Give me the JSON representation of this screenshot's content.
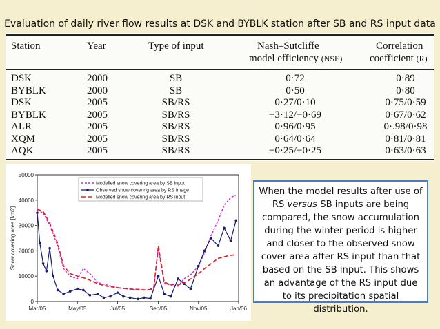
{
  "title": "Evaluation of daily river flow results at DSK and BYBLK station after SB and RS input data",
  "table": {
    "headers": {
      "station": "Station",
      "year": "Year",
      "type": "Type of input",
      "nse_line1": "Nash–Sutcliffe",
      "nse_line2": "model efficiency",
      "nse_abbr": "(NSE)",
      "corr_line1": "Correlation",
      "corr_line2": "coefficient",
      "corr_abbr": "(R)"
    },
    "rows": [
      {
        "station": "DSK",
        "year": "2000",
        "type": "SB",
        "nse": "0·72",
        "r": "0·89"
      },
      {
        "station": "BYBLK",
        "year": "2000",
        "type": "SB",
        "nse": "0·50",
        "r": "0·80"
      },
      {
        "station": "DSK",
        "year": "2005",
        "type": "SB/RS",
        "nse": "0·27/0·10",
        "r": "0·75/0·59"
      },
      {
        "station": "BYBLK",
        "year": "2005",
        "type": "SB/RS",
        "nse": "−3·12/−0·69",
        "r": "0·67/0·62"
      },
      {
        "station": "ALR",
        "year": "2005",
        "type": "SB/RS",
        "nse": "0·96/0·95",
        "r": "0·.98/0·98"
      },
      {
        "station": "XQM",
        "year": "2005",
        "type": "SB/RS",
        "nse": "0·64/0·64",
        "r": "0·81/0·81"
      },
      {
        "station": "AQK",
        "year": "2005",
        "type": "SB/RS",
        "nse": "−0·25/−0·25",
        "r": "0·63/0·63"
      }
    ]
  },
  "chart_data": {
    "type": "line",
    "ylabel": "Snow covering area [km2]",
    "xlabel": "",
    "ylim": [
      0,
      50000
    ],
    "yticks": [
      "0",
      "10000",
      "20000",
      "30000",
      "40000",
      "50000"
    ],
    "xticks": [
      "Mar/05",
      "May/05",
      "Jul/05",
      "Sep/05",
      "Nov/05",
      "Jan/06"
    ],
    "legend_position": "top-right",
    "series": [
      {
        "name": "Modelled snow covering area by SB input",
        "color": "#d020d0",
        "x": [
          "2005-03-01",
          "2005-03-10",
          "2005-03-20",
          "2005-04-01",
          "2005-04-10",
          "2005-04-20",
          "2005-05-01",
          "2005-05-10",
          "2005-05-20",
          "2005-06-01",
          "2005-06-15",
          "2005-07-01",
          "2005-07-15",
          "2005-08-01",
          "2005-08-15",
          "2005-08-25",
          "2005-09-01",
          "2005-09-10",
          "2005-09-20",
          "2005-10-01",
          "2005-10-10",
          "2005-10-20",
          "2005-11-01",
          "2005-11-10",
          "2005-11-20",
          "2005-12-01",
          "2005-12-10",
          "2005-12-20",
          "2005-12-28"
        ],
        "values": [
          36000,
          35000,
          30000,
          22000,
          13000,
          10000,
          9000,
          13000,
          11000,
          7500,
          6500,
          5500,
          5000,
          4500,
          4500,
          5500,
          21000,
          7000,
          6500,
          6000,
          9000,
          10500,
          14000,
          19000,
          26000,
          32000,
          38000,
          41000,
          42000
        ]
      },
      {
        "name": "Observed snow covering area by RS image",
        "color": "#1a1a6e",
        "x": [
          "2005-03-01",
          "2005-03-05",
          "2005-03-10",
          "2005-03-15",
          "2005-03-20",
          "2005-03-25",
          "2005-04-01",
          "2005-04-10",
          "2005-04-20",
          "2005-05-01",
          "2005-05-10",
          "2005-05-20",
          "2005-06-01",
          "2005-06-10",
          "2005-06-20",
          "2005-07-01",
          "2005-07-10",
          "2005-07-20",
          "2005-08-01",
          "2005-08-10",
          "2005-08-20",
          "2005-09-01",
          "2005-09-10",
          "2005-09-20",
          "2005-10-01",
          "2005-10-10",
          "2005-10-20",
          "2005-11-01",
          "2005-11-10",
          "2005-11-20",
          "2005-12-01",
          "2005-12-10",
          "2005-12-20",
          "2005-12-28"
        ],
        "values": [
          35000,
          23000,
          15000,
          12000,
          21000,
          10000,
          4500,
          3000,
          4000,
          5000,
          4500,
          2500,
          3000,
          1500,
          2000,
          3500,
          2000,
          1500,
          1000,
          1500,
          1200,
          10000,
          3000,
          2000,
          9000,
          7000,
          5000,
          14000,
          20000,
          25000,
          22000,
          29000,
          24000,
          32000
        ]
      },
      {
        "name": "Modelled snow covering area by RS input",
        "color": "#e02020",
        "x": [
          "2005-03-01",
          "2005-03-10",
          "2005-03-20",
          "2005-04-01",
          "2005-04-10",
          "2005-04-20",
          "2005-05-01",
          "2005-05-15",
          "2005-06-01",
          "2005-06-15",
          "2005-07-01",
          "2005-07-15",
          "2005-08-01",
          "2005-08-15",
          "2005-08-25",
          "2005-09-01",
          "2005-09-10",
          "2005-09-20",
          "2005-10-01",
          "2005-10-15",
          "2005-11-01",
          "2005-11-15",
          "2005-12-01",
          "2005-12-15",
          "2005-12-28"
        ],
        "values": [
          36500,
          35500,
          31000,
          23000,
          14000,
          11000,
          10000,
          9000,
          7000,
          6000,
          5500,
          5000,
          4800,
          4500,
          5000,
          22000,
          7500,
          6800,
          6500,
          8000,
          11000,
          14000,
          17000,
          18000,
          18500
        ]
      }
    ]
  },
  "text_box": {
    "p1": "When the model results after use of RS ",
    "versus": "versus",
    "p2": " SB inputs are being compared, the snow accumulation during the winter period is higher and closer to the observed snow cover area after RS input than that based on the SB input. This shows an advantage of the RS input due to its precipitation spatial distribution."
  }
}
